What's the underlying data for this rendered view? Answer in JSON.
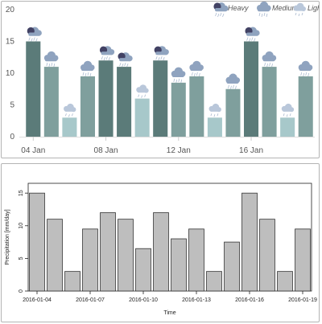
{
  "chart_data": [
    {
      "type": "bar",
      "categories": [
        "2016-01-04",
        "2016-01-05",
        "2016-01-06",
        "2016-01-07",
        "2016-01-08",
        "2016-01-09",
        "2016-01-10",
        "2016-01-11",
        "2016-01-12",
        "2016-01-13",
        "2016-01-14",
        "2016-01-15",
        "2016-01-16",
        "2016-01-17",
        "2016-01-18",
        "2016-01-19"
      ],
      "values": [
        15,
        11,
        3,
        9.5,
        12,
        11,
        6,
        12,
        8.5,
        9.5,
        3,
        7.5,
        15,
        11,
        3,
        9.5
      ],
      "intensity": [
        "heavy",
        "medium",
        "light",
        "medium",
        "heavy",
        "heavy",
        "light",
        "heavy",
        "medium",
        "medium",
        "light",
        "medium",
        "heavy",
        "medium",
        "light",
        "medium"
      ],
      "x_tick_labels": [
        "04 Jan",
        "08 Jan",
        "12 Jan",
        "16 Jan"
      ],
      "x_tick_categories": [
        "2016-01-04",
        "2016-01-08",
        "2016-01-12",
        "2016-01-16"
      ],
      "y_ticks": [
        0,
        5,
        10,
        15,
        20
      ],
      "ylim": [
        0,
        20
      ],
      "grid": false,
      "legend": {
        "placement": "top-right",
        "entries": [
          {
            "label": "Heavy",
            "key": "heavy"
          },
          {
            "label": "Medium",
            "key": "medium"
          },
          {
            "label": "Light",
            "key": "light"
          }
        ]
      },
      "colors": {
        "heavy": "#5b7b79",
        "medium": "#7f9f9d",
        "light": "#a7c8ca",
        "cloud": "#8fa3bf",
        "dark_cloud": "#424264"
      }
    },
    {
      "type": "bar",
      "categories": [
        "2016-01-04",
        "2016-01-05",
        "2016-01-06",
        "2016-01-07",
        "2016-01-08",
        "2016-01-09",
        "2016-01-10",
        "2016-01-11",
        "2016-01-12",
        "2016-01-13",
        "2016-01-14",
        "2016-01-15",
        "2016-01-16",
        "2016-01-17",
        "2016-01-18",
        "2016-01-19"
      ],
      "values": [
        15,
        11,
        3,
        9.5,
        12,
        11,
        6.5,
        12,
        8,
        9.5,
        3,
        7.5,
        15,
        11,
        3,
        9.5
      ],
      "x_tick_labels": [
        "2016-01-04",
        "2016-01-07",
        "2016-01-10",
        "2016-01-13",
        "2016-01-16",
        "2016-01-19"
      ],
      "xlabel": "Time",
      "ylabel": "Precipitation [mm/day]",
      "y_ticks": [
        0,
        5,
        10,
        15
      ],
      "ylim": [
        0,
        16.5
      ],
      "grid": false,
      "colors": {
        "bar": "#bebebe",
        "stroke": "#333333"
      }
    }
  ]
}
